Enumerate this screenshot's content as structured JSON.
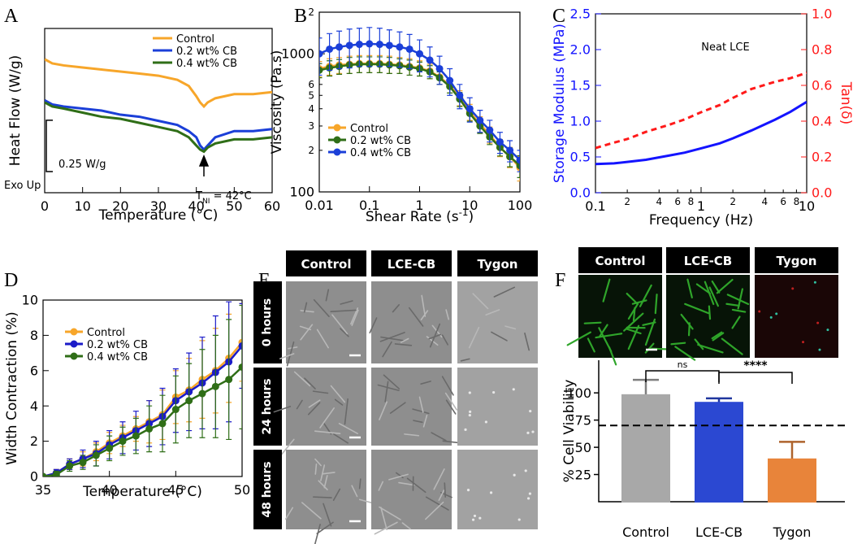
{
  "chart_data": [
    {
      "panel": "A",
      "type": "line",
      "xlabel": "Temperature (°C)",
      "ylabel": "Heat Flow (W/g)",
      "x": [
        0,
        2,
        5,
        10,
        15,
        20,
        25,
        30,
        35,
        38,
        40,
        41,
        42,
        43,
        45,
        50,
        55,
        60
      ],
      "xlim": [
        0,
        60
      ],
      "xticks": [
        0,
        10,
        20,
        30,
        40,
        50,
        60
      ],
      "ylim": [
        0,
        0.8
      ],
      "series": [
        {
          "name": "Control",
          "color": "#f7a62a",
          "values": [
            0.65,
            0.63,
            0.62,
            0.61,
            0.6,
            0.59,
            0.58,
            0.57,
            0.55,
            0.52,
            0.47,
            0.44,
            0.42,
            0.44,
            0.46,
            0.48,
            0.48,
            0.49
          ]
        },
        {
          "name": "0.2 wt% CB",
          "color": "#1b3fd8",
          "values": [
            0.45,
            0.43,
            0.42,
            0.41,
            0.4,
            0.38,
            0.37,
            0.35,
            0.33,
            0.3,
            0.27,
            0.23,
            0.21,
            0.23,
            0.27,
            0.3,
            0.3,
            0.31
          ]
        },
        {
          "name": "0.4 wt% CB",
          "color": "#2f6e17",
          "values": [
            0.44,
            0.42,
            0.41,
            0.39,
            0.37,
            0.36,
            0.34,
            0.32,
            0.3,
            0.27,
            0.23,
            0.21,
            0.2,
            0.22,
            0.24,
            0.26,
            0.26,
            0.27
          ]
        }
      ],
      "legend": "upper right",
      "scale_bar": {
        "value": 0.25,
        "label": "0.25 W/g"
      },
      "note": "Exo Up",
      "annotation": {
        "x": 42,
        "text": [
          "T",
          "NI",
          " = 42°C"
        ]
      }
    },
    {
      "panel": "B",
      "type": "line",
      "xlabel": [
        "Shear Rate (s",
        "-1",
        ")"
      ],
      "ylabel": "Viscosity (Pa.s)",
      "xlog": true,
      "ylog": true,
      "x": [
        0.01,
        0.016,
        0.025,
        0.04,
        0.063,
        0.1,
        0.16,
        0.25,
        0.4,
        0.63,
        1,
        1.6,
        2.5,
        4,
        6.3,
        10,
        16,
        25,
        40,
        63,
        100
      ],
      "xlim": [
        0.01,
        100
      ],
      "xticks": [
        0.01,
        0.1,
        1,
        10,
        100
      ],
      "ylim": [
        100,
        2000
      ],
      "yticks": [
        100,
        {
          "value": 200,
          "label": "2"
        },
        {
          "value": 300,
          "label": "3"
        },
        {
          "value": 400,
          "label": "4"
        },
        {
          "value": 500,
          "label": "5"
        },
        {
          "value": 600,
          "label": "6"
        },
        1000,
        {
          "value": 2000,
          "label": "2"
        }
      ],
      "marker": "circle",
      "series": [
        {
          "name": "Control",
          "color": "#f7a62a",
          "values": [
            780,
            810,
            830,
            840,
            850,
            850,
            850,
            840,
            830,
            810,
            790,
            750,
            680,
            590,
            480,
            380,
            310,
            260,
            210,
            180,
            150
          ],
          "errors": [
            100,
            110,
            110,
            120,
            120,
            120,
            120,
            120,
            110,
            110,
            100,
            90,
            80,
            70,
            60,
            50,
            40,
            35,
            30,
            30,
            30
          ]
        },
        {
          "name": "0.2 wt% CB",
          "color": "#2f6e17",
          "values": [
            760,
            790,
            810,
            830,
            840,
            840,
            840,
            830,
            820,
            800,
            780,
            740,
            670,
            580,
            470,
            370,
            300,
            250,
            210,
            180,
            155
          ],
          "errors": [
            90,
            100,
            100,
            110,
            110,
            110,
            110,
            110,
            100,
            100,
            90,
            80,
            70,
            60,
            55,
            45,
            35,
            30,
            28,
            28,
            28
          ]
        },
        {
          "name": "0.4 wt% CB",
          "color": "#1b3fd8",
          "values": [
            1000,
            1080,
            1120,
            1150,
            1170,
            1180,
            1170,
            1150,
            1120,
            1080,
            1000,
            900,
            780,
            640,
            500,
            400,
            330,
            280,
            230,
            200,
            170
          ],
          "errors": [
            300,
            320,
            340,
            360,
            360,
            370,
            360,
            340,
            320,
            300,
            260,
            220,
            180,
            140,
            100,
            80,
            60,
            50,
            40,
            35,
            30
          ]
        }
      ],
      "legend": "lower left"
    },
    {
      "panel": "C",
      "type": "line",
      "xlabel": "Frequency (Hz)",
      "ylabel": "Storage Modulus (MPa)",
      "y2label": "Tan(δ)",
      "xlog": true,
      "x": [
        0.1,
        0.15,
        0.2,
        0.3,
        0.5,
        0.7,
        1,
        1.5,
        2,
        3,
        5,
        7,
        10
      ],
      "xlim": [
        0.1,
        10
      ],
      "xticks": [
        0.1,
        {
          "value": 0.2,
          "label": "2"
        },
        {
          "value": 0.4,
          "label": "4"
        },
        {
          "value": 0.6,
          "label": "6"
        },
        {
          "value": 0.8,
          "label": "8"
        },
        1,
        {
          "value": 2,
          "label": "2"
        },
        {
          "value": 4,
          "label": "4"
        },
        {
          "value": 6,
          "label": "6"
        },
        {
          "value": 8,
          "label": "8"
        },
        10
      ],
      "ylim": [
        0,
        2.5
      ],
      "yticks": [
        {
          "value": 0,
          "label": "0.0"
        },
        0.5,
        {
          "value": 1,
          "label": "1.0"
        },
        1.5,
        {
          "value": 2,
          "label": "2.0"
        },
        2.5
      ],
      "y2lim": [
        0,
        1
      ],
      "y2ticks": [
        {
          "value": 0,
          "label": "0.0"
        },
        0.2,
        0.4,
        0.6,
        0.8,
        {
          "value": 1,
          "label": "1.0"
        }
      ],
      "series": [
        {
          "color": "#1414ff",
          "values": [
            0.4,
            0.41,
            0.43,
            0.46,
            0.52,
            0.56,
            0.62,
            0.69,
            0.76,
            0.87,
            1.02,
            1.13,
            1.27
          ]
        },
        {
          "color": "#ff1a1a",
          "dash": true,
          "axis": "y2",
          "values": [
            0.25,
            0.28,
            0.3,
            0.34,
            0.38,
            0.41,
            0.45,
            0.49,
            0.53,
            0.58,
            0.62,
            0.64,
            0.67
          ]
        }
      ],
      "note": "Neat LCE"
    },
    {
      "panel": "D",
      "type": "line",
      "xlabel": "Temperature (°C)",
      "ylabel": "Width Contraction (%)",
      "x": [
        35,
        36,
        37,
        38,
        39,
        40,
        41,
        42,
        43,
        44,
        45,
        46,
        47,
        48,
        49,
        50
      ],
      "xlim": [
        35,
        50
      ],
      "xticks": [
        35,
        40,
        45,
        50
      ],
      "ylim": [
        0,
        10
      ],
      "yticks": [
        0,
        2,
        4,
        6,
        8,
        10
      ],
      "marker": "circle",
      "series": [
        {
          "name": "Control",
          "color": "#f7a62a",
          "values": [
            0,
            0.2,
            0.7,
            1.0,
            1.4,
            1.9,
            2.3,
            2.7,
            3.1,
            3.5,
            4.5,
            4.9,
            5.5,
            6.0,
            6.7,
            7.6
          ],
          "errors": [
            0,
            0.2,
            0.3,
            0.4,
            0.5,
            0.6,
            0.6,
            0.7,
            1.2,
            1.4,
            1.5,
            1.8,
            2.2,
            2.4,
            2.5,
            2.2
          ]
        },
        {
          "name": "0.2 wt% CB",
          "color": "#1b1bc8",
          "values": [
            0,
            0.2,
            0.7,
            1.0,
            1.3,
            1.8,
            2.2,
            2.6,
            3.0,
            3.4,
            4.3,
            4.8,
            5.3,
            5.9,
            6.5,
            7.4
          ],
          "errors": [
            0,
            0.2,
            0.3,
            0.5,
            0.7,
            0.8,
            0.9,
            1.1,
            1.3,
            1.6,
            1.8,
            2.2,
            2.6,
            3.2,
            3.4,
            2.4
          ]
        },
        {
          "name": "0.4 wt% CB",
          "color": "#2f6e17",
          "values": [
            0,
            0.1,
            0.6,
            0.8,
            1.2,
            1.6,
            2.0,
            2.3,
            2.7,
            3.0,
            3.8,
            4.3,
            4.7,
            5.1,
            5.5,
            6.2
          ],
          "errors": [
            0,
            0.2,
            0.3,
            0.4,
            0.6,
            0.7,
            0.8,
            1.0,
            1.3,
            1.6,
            1.9,
            2.1,
            2.5,
            2.9,
            3.4,
            3.5
          ]
        }
      ],
      "legend": "upper left"
    },
    {
      "panel": "E",
      "type": "image_grid",
      "columns": [
        "Control",
        "LCE-CB",
        "Tygon"
      ],
      "rows": [
        "0 hours",
        "24 hours",
        "48 hours"
      ]
    },
    {
      "panel": "F",
      "type": "bar",
      "image_headers": [
        "Control",
        "LCE-CB",
        "Tygon"
      ],
      "ylabel": "% Cell Viability",
      "categories": [
        "Control",
        "LCE-CB",
        "Tygon"
      ],
      "values": [
        98,
        91,
        39
      ],
      "errors": [
        14,
        4,
        16
      ],
      "colors": [
        "#a8a8a8",
        "#2b48d2",
        "#e8843a"
      ],
      "ylim": [
        0,
        130
      ],
      "yticks": [
        25,
        50,
        75,
        100
      ],
      "reference_line": 70,
      "significance": [
        "ns",
        "****"
      ]
    }
  ]
}
